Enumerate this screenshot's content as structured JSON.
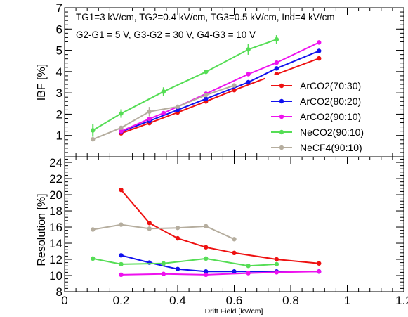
{
  "chart_data": {
    "type": "line",
    "xlabel": "Drift Field [kV/cm]",
    "xlim": [
      0,
      1.2
    ],
    "xticks": [
      0,
      0.2,
      0.4,
      0.6,
      0.8,
      1,
      1.2
    ],
    "xtick_labels": [
      "0",
      "0.2",
      "0.4",
      "0.6",
      "0.8",
      "1",
      "1.2"
    ],
    "panels": [
      {
        "id": "ibf",
        "ylabel": "IBF [%]",
        "ylim": [
          0,
          7
        ],
        "yticks": [
          1,
          2,
          3,
          4,
          5,
          6,
          7
        ],
        "ytick_labels": [
          "1",
          "2",
          "3",
          "4",
          "5",
          "6",
          "7"
        ],
        "annotations": [
          "TG1=3 kV/cm, TG2=0.4 kV/cm, TG3=0.5 kV/cm, Ind=4 kV/cm",
          "G2-G1 = 5 V, G3-G2 = 30 V, G4-G3 = 10 V"
        ],
        "legend_position": "bottom-right",
        "series": [
          {
            "name": "ArCO2(70:30)",
            "color": "#ee1111",
            "x": [
              0.2,
              0.3,
              0.4,
              0.5,
              0.6,
              0.75,
              0.9
            ],
            "y": [
              1.1,
              1.58,
              2.08,
              2.6,
              3.13,
              3.88,
              4.62
            ],
            "yerr": [
              0.05,
              0.05,
              0.05,
              0.05,
              0.05,
              0.05,
              0.05
            ]
          },
          {
            "name": "ArCO2(80:20)",
            "color": "#1111ee",
            "x": [
              0.2,
              0.3,
              0.4,
              0.5,
              0.65,
              0.75,
              0.9
            ],
            "y": [
              1.18,
              1.68,
              2.2,
              2.72,
              3.5,
              4.15,
              4.97
            ],
            "yerr": [
              0.05,
              0.05,
              0.05,
              0.05,
              0.05,
              0.05,
              0.05
            ]
          },
          {
            "name": "ArCO2(90:10)",
            "color": "#ee11ee",
            "x": [
              0.2,
              0.3,
              0.35,
              0.5,
              0.65,
              0.75,
              0.9
            ],
            "y": [
              1.2,
              1.78,
              2.05,
              2.96,
              3.88,
              4.42,
              5.37
            ],
            "yerr": [
              0.05,
              0.05,
              0.05,
              0.05,
              0.05,
              0.05,
              0.05
            ]
          },
          {
            "name": "NeCO2(90:10)",
            "color": "#55dd55",
            "x": [
              0.1,
              0.2,
              0.35,
              0.5,
              0.65,
              0.75
            ],
            "y": [
              1.24,
              2.03,
              3.06,
              3.99,
              5.04,
              5.51
            ],
            "yerr": [
              0.3,
              0.2,
              0.2,
              0.1,
              0.25,
              0.2
            ]
          },
          {
            "name": "NeCF4(90:10)",
            "color": "#b5ad9e",
            "x": [
              0.1,
              0.2,
              0.3,
              0.4,
              0.5,
              0.6
            ],
            "y": [
              0.82,
              1.36,
              2.12,
              2.35,
              2.9,
              3.35
            ],
            "yerr": [
              0.05,
              0.05,
              0.22,
              0.05,
              0.05,
              0.05
            ]
          }
        ]
      },
      {
        "id": "resolution",
        "ylabel": "Resolution [%]",
        "ylim": [
          8,
          24.7
        ],
        "yticks": [
          8,
          10,
          12,
          14,
          16,
          18,
          20,
          22,
          24
        ],
        "ytick_labels": [
          "8",
          "10",
          "12",
          "14",
          "16",
          "18",
          "20",
          "22",
          "24"
        ],
        "series": [
          {
            "name": "ArCO2(70:30)",
            "color": "#ee1111",
            "x": [
              0.2,
              0.3,
              0.4,
              0.5,
              0.6,
              0.75,
              0.9
            ],
            "y": [
              20.6,
              16.5,
              14.6,
              13.5,
              12.8,
              12.0,
              11.5
            ]
          },
          {
            "name": "ArCO2(80:20)",
            "color": "#1111ee",
            "x": [
              0.2,
              0.3,
              0.4,
              0.5,
              0.6,
              0.75,
              0.9
            ],
            "y": [
              12.5,
              11.6,
              10.8,
              10.5,
              10.5,
              10.5,
              10.5
            ]
          },
          {
            "name": "ArCO2(90:10)",
            "color": "#ee11ee",
            "x": [
              0.2,
              0.35,
              0.5,
              0.65,
              0.75,
              0.9
            ],
            "y": [
              10.1,
              10.2,
              10.1,
              10.3,
              10.4,
              10.5
            ]
          },
          {
            "name": "NeCO2(90:10)",
            "color": "#55dd55",
            "x": [
              0.1,
              0.2,
              0.35,
              0.5,
              0.65,
              0.75
            ],
            "y": [
              12.1,
              11.4,
              11.5,
              12.1,
              11.2,
              11.4
            ]
          },
          {
            "name": "NeCF4(90:10)",
            "color": "#b5ad9e",
            "x": [
              0.1,
              0.2,
              0.3,
              0.4,
              0.5,
              0.6
            ],
            "y": [
              15.7,
              16.3,
              15.8,
              15.9,
              16.1,
              14.5
            ]
          }
        ]
      }
    ]
  }
}
